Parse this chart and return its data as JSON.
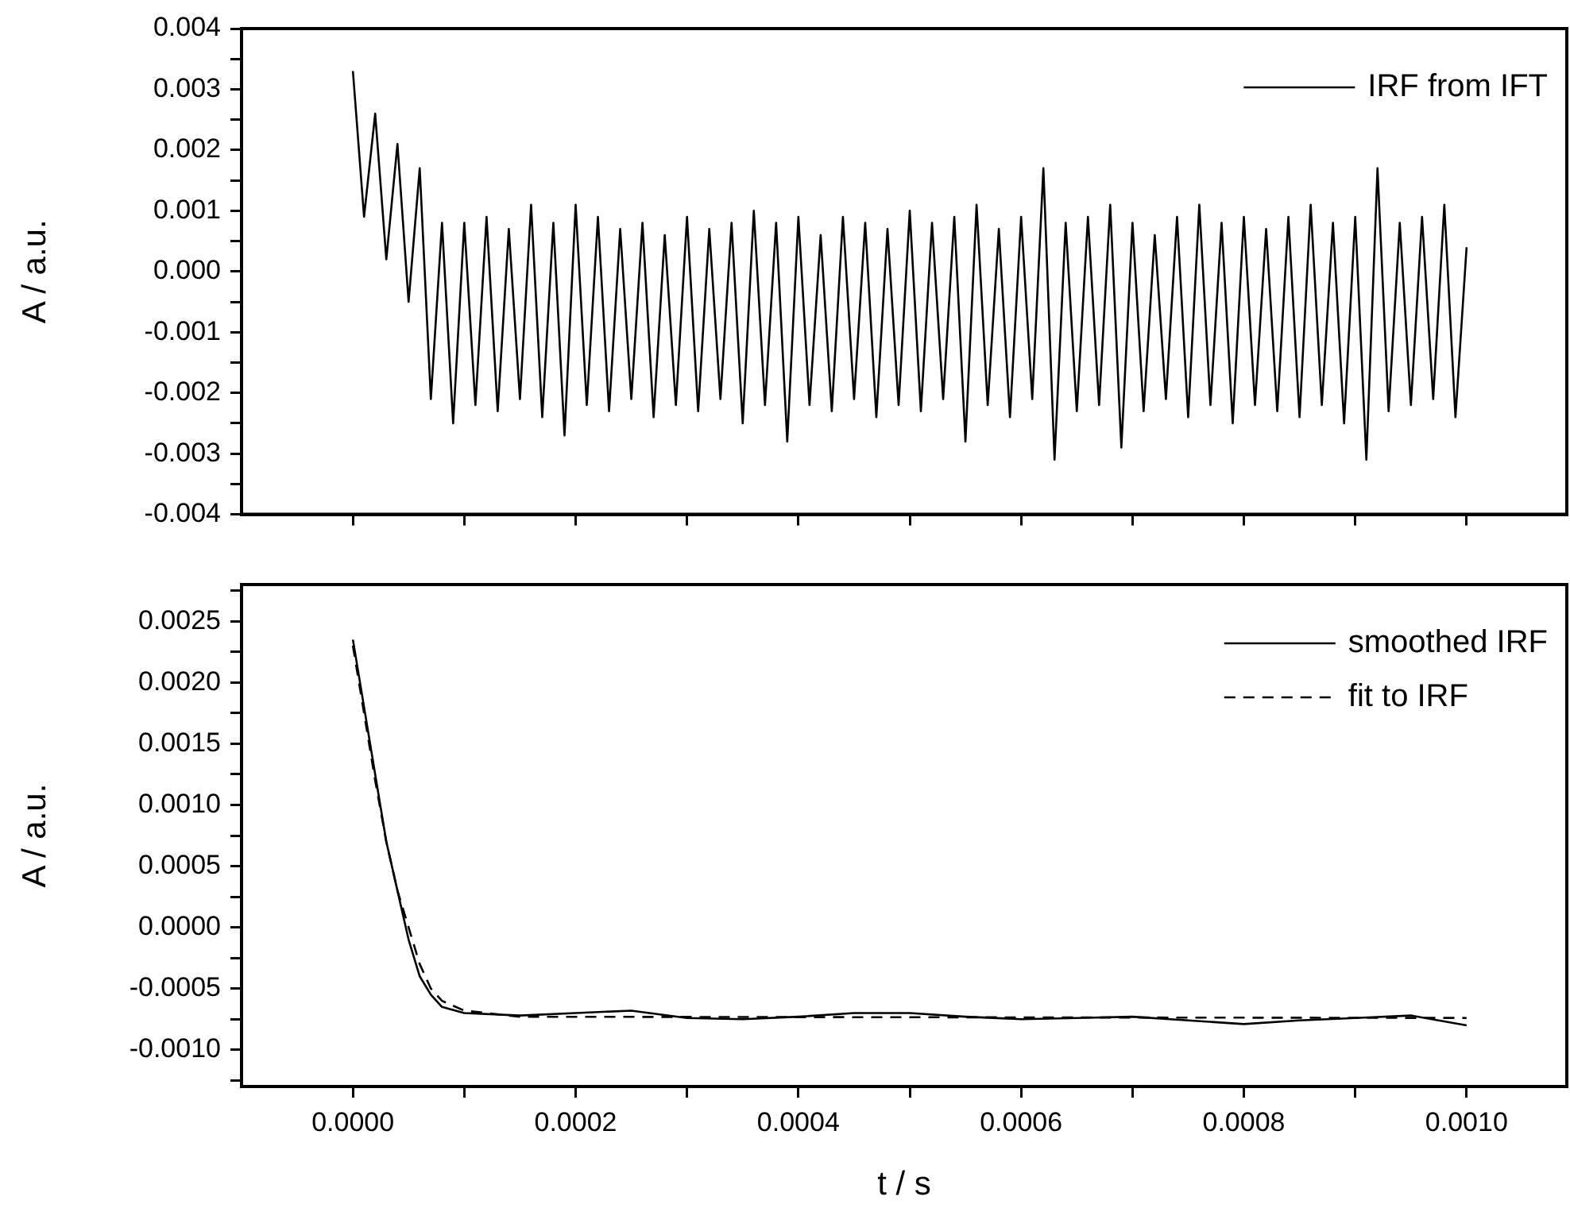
{
  "chart_data": [
    {
      "type": "line",
      "ylabel": "A / a.u.",
      "xlim": [
        -0.0001,
        0.00109
      ],
      "ylim": [
        -0.004,
        0.004
      ],
      "xticks": [
        {
          "value": 0,
          "label": null
        },
        {
          "value": 0.0001,
          "label": null
        },
        {
          "value": 0.0002,
          "label": null
        },
        {
          "value": 0.0003,
          "label": null
        },
        {
          "value": 0.0004,
          "label": null
        },
        {
          "value": 0.0005,
          "label": null
        },
        {
          "value": 0.0006,
          "label": null
        },
        {
          "value": 0.0007,
          "label": null
        },
        {
          "value": 0.0008,
          "label": null
        },
        {
          "value": 0.0009,
          "label": null
        },
        {
          "value": 0.001,
          "label": null
        }
      ],
      "yticks": [
        {
          "value": -0.004,
          "label": "-0.004"
        },
        {
          "value": -0.0035,
          "label": null
        },
        {
          "value": -0.003,
          "label": "-0.003"
        },
        {
          "value": -0.0025,
          "label": null
        },
        {
          "value": -0.002,
          "label": "-0.002"
        },
        {
          "value": -0.0015,
          "label": null
        },
        {
          "value": -0.001,
          "label": "-0.001"
        },
        {
          "value": -0.0005,
          "label": null
        },
        {
          "value": 0,
          "label": "0.000"
        },
        {
          "value": 0.0005,
          "label": null
        },
        {
          "value": 0.001,
          "label": "0.001"
        },
        {
          "value": 0.0015,
          "label": null
        },
        {
          "value": 0.002,
          "label": "0.002"
        },
        {
          "value": 0.0025,
          "label": null
        },
        {
          "value": 0.003,
          "label": "0.003"
        },
        {
          "value": 0.0035,
          "label": null
        },
        {
          "value": 0.004,
          "label": "0.004"
        }
      ],
      "tick_labels": "y",
      "grid": false,
      "legend": "top right",
      "marker": "none",
      "series": [
        {
          "name": "IRF from IFT",
          "color": "#000000",
          "line_style": "solid",
          "x": [
            0,
            1e-05,
            2e-05,
            3e-05,
            4e-05,
            5e-05,
            6e-05,
            7e-05,
            8e-05,
            9e-05,
            0.0001,
            0.00011,
            0.00012,
            0.00013,
            0.00014,
            0.00015,
            0.00016,
            0.00017,
            0.00018,
            0.00019,
            0.0002,
            0.00021,
            0.00022,
            0.00023,
            0.00024,
            0.00025,
            0.00026,
            0.00027,
            0.00028,
            0.00029,
            0.0003,
            0.00031,
            0.00032,
            0.00033,
            0.00034,
            0.00035,
            0.00036,
            0.00037,
            0.00038,
            0.00039,
            0.0004,
            0.00041,
            0.00042,
            0.00043,
            0.00044,
            0.00045,
            0.00046,
            0.00047,
            0.00048,
            0.00049,
            0.0005,
            0.00051,
            0.00052,
            0.00053,
            0.00054,
            0.00055,
            0.00056,
            0.00057,
            0.00058,
            0.00059,
            0.0006,
            0.00061,
            0.00062,
            0.00063,
            0.00064,
            0.00065,
            0.00066,
            0.00067,
            0.00068,
            0.00069,
            0.0007,
            0.00071,
            0.00072,
            0.00073,
            0.00074,
            0.00075,
            0.00076,
            0.00077,
            0.00078,
            0.00079,
            0.0008,
            0.00081,
            0.00082,
            0.00083,
            0.00084,
            0.00085,
            0.00086,
            0.00087,
            0.00088,
            0.00089,
            0.0009,
            0.00091,
            0.00092,
            0.00093,
            0.00094,
            0.00095,
            0.00096,
            0.00097,
            0.00098,
            0.00099,
            0.001
          ],
          "values": [
            0.0033,
            0.0009,
            0.0026,
            0.0002,
            0.0021,
            -0.0005,
            0.0017,
            -0.0021,
            0.0008,
            -0.0025,
            0.0008,
            -0.0022,
            0.0009,
            -0.0023,
            0.0007,
            -0.0021,
            0.0011,
            -0.0024,
            0.0008,
            -0.0027,
            0.0011,
            -0.0022,
            0.0009,
            -0.0023,
            0.0007,
            -0.0021,
            0.0008,
            -0.0024,
            0.0006,
            -0.0022,
            0.0009,
            -0.0023,
            0.0007,
            -0.0021,
            0.0008,
            -0.0025,
            0.001,
            -0.0022,
            0.0008,
            -0.0028,
            0.0009,
            -0.0022,
            0.0006,
            -0.0023,
            0.0009,
            -0.0021,
            0.0008,
            -0.0024,
            0.0007,
            -0.0022,
            0.001,
            -0.0023,
            0.0008,
            -0.0021,
            0.0009,
            -0.0028,
            0.0011,
            -0.0022,
            0.0007,
            -0.0024,
            0.0009,
            -0.0021,
            0.0017,
            -0.0031,
            0.0008,
            -0.0023,
            0.0009,
            -0.0022,
            0.0011,
            -0.0029,
            0.0008,
            -0.0023,
            0.0006,
            -0.0021,
            0.0009,
            -0.0024,
            0.0011,
            -0.0022,
            0.0008,
            -0.0025,
            0.0009,
            -0.0022,
            0.0007,
            -0.0023,
            0.0009,
            -0.0024,
            0.0011,
            -0.0022,
            0.0008,
            -0.0025,
            0.0009,
            -0.0031,
            0.0017,
            -0.0023,
            0.0008,
            -0.0022,
            0.0009,
            -0.0021,
            0.0011,
            -0.0024,
            0.0004
          ]
        }
      ]
    },
    {
      "type": "line",
      "xlabel": "t / s",
      "ylabel": "A / a.u.",
      "xlim": [
        -0.0001,
        0.00109
      ],
      "ylim": [
        -0.0013,
        0.0028
      ],
      "xticks": [
        {
          "value": 0,
          "label": "0.0000"
        },
        {
          "value": 0.0001,
          "label": null
        },
        {
          "value": 0.0002,
          "label": "0.0002"
        },
        {
          "value": 0.0003,
          "label": null
        },
        {
          "value": 0.0004,
          "label": "0.0004"
        },
        {
          "value": 0.0005,
          "label": null
        },
        {
          "value": 0.0006,
          "label": "0.0006"
        },
        {
          "value": 0.0007,
          "label": null
        },
        {
          "value": 0.0008,
          "label": "0.0008"
        },
        {
          "value": 0.0009,
          "label": null
        },
        {
          "value": 0.001,
          "label": "0.0010"
        }
      ],
      "yticks": [
        {
          "value": -0.00125,
          "label": null
        },
        {
          "value": -0.001,
          "label": "-0.0010"
        },
        {
          "value": -0.00075,
          "label": null
        },
        {
          "value": -0.0005,
          "label": "-0.0005"
        },
        {
          "value": -0.00025,
          "label": null
        },
        {
          "value": 0,
          "label": "0.0000"
        },
        {
          "value": 0.00025,
          "label": null
        },
        {
          "value": 0.0005,
          "label": "0.0005"
        },
        {
          "value": 0.00075,
          "label": null
        },
        {
          "value": 0.001,
          "label": "0.0010"
        },
        {
          "value": 0.00125,
          "label": null
        },
        {
          "value": 0.0015,
          "label": "0.0015"
        },
        {
          "value": 0.00175,
          "label": null
        },
        {
          "value": 0.002,
          "label": "0.0020"
        },
        {
          "value": 0.00225,
          "label": null
        },
        {
          "value": 0.0025,
          "label": "0.0025"
        },
        {
          "value": 0.00275,
          "label": null
        }
      ],
      "grid": false,
      "legend": "top right",
      "marker": "none",
      "series": [
        {
          "name": "smoothed IRF",
          "color": "#000000",
          "line_style": "solid",
          "x": [
            0,
            1e-05,
            2e-05,
            3e-05,
            4e-05,
            5e-05,
            6e-05,
            7e-05,
            8e-05,
            0.0001,
            0.00015,
            0.0002,
            0.00025,
            0.0003,
            0.00035,
            0.0004,
            0.00045,
            0.0005,
            0.00055,
            0.0006,
            0.00065,
            0.0007,
            0.00075,
            0.0008,
            0.00085,
            0.0009,
            0.00095,
            0.001
          ],
          "values": [
            0.00235,
            0.0018,
            0.00125,
            0.0007,
            0.0003,
            -0.0001,
            -0.0004,
            -0.00055,
            -0.00065,
            -0.0007,
            -0.00072,
            -0.0007,
            -0.00068,
            -0.00074,
            -0.00075,
            -0.00073,
            -0.0007,
            -0.0007,
            -0.00073,
            -0.00075,
            -0.00074,
            -0.00073,
            -0.00076,
            -0.00079,
            -0.00076,
            -0.00074,
            -0.00072,
            -0.0008
          ]
        },
        {
          "name": "fit to IRF",
          "color": "#000000",
          "line_style": "dashed",
          "x": [
            0,
            1e-05,
            2e-05,
            3e-05,
            4e-05,
            5e-05,
            6e-05,
            7e-05,
            8e-05,
            0.0001,
            0.00015,
            0.001
          ],
          "values": [
            0.0023,
            0.00175,
            0.0012,
            0.0007,
            0.0003,
            0,
            -0.0003,
            -0.0005,
            -0.0006,
            -0.00068,
            -0.00073,
            -0.00074
          ]
        }
      ]
    }
  ]
}
